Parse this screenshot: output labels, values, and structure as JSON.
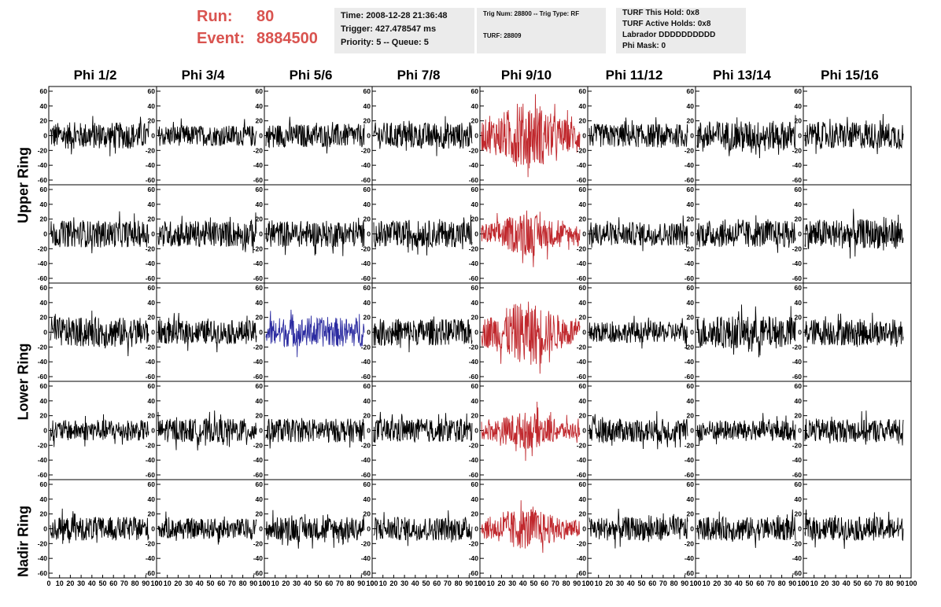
{
  "header": {
    "run_label": "Run:",
    "run_value": "80",
    "event_label": "Event:",
    "event_value": "8884500",
    "box1": {
      "time": "Time: 2008-12-28 21:36:48",
      "trigger": "Trigger: 427.478547 ms",
      "priority": "Priority: 5 -- Queue: 5"
    },
    "box2": {
      "trig": "Trig Num: 28800 -- Trig Type: RF",
      "turf": "TURF: 28809"
    },
    "box3": {
      "this_hold": "TURF This Hold: 0x8",
      "active_holds": "TURF Active Holds: 0x8",
      "labrador": "Labrador DDDDDDDDDD",
      "phi_mask": "Phi Mask: 0"
    }
  },
  "columns": [
    "Phi 1/2",
    "Phi 3/4",
    "Phi 5/6",
    "Phi 7/8",
    "Phi 9/10",
    "Phi 11/12",
    "Phi 13/14",
    "Phi 15/16"
  ],
  "rows": [
    "Upper Ring",
    "Lower Ring",
    "Nadir Ring"
  ],
  "colors": {
    "normal": "#000000",
    "highlight_red": "#c0282d",
    "highlight_blue": "#2a2aa0"
  },
  "chart_data": {
    "type": "line",
    "description_grid": "5 rows x 8 columns of waveform panels",
    "ylim": [
      -60,
      60
    ],
    "xlim": [
      0,
      100
    ],
    "yticks": [
      "60",
      "40",
      "20",
      "0",
      "-20",
      "-40",
      "-60"
    ],
    "xticks": [
      "0",
      "10",
      "20",
      "30",
      "40",
      "50",
      "60",
      "70",
      "80",
      "90",
      "100"
    ],
    "panels": [
      [
        {
          "amp": 18,
          "color": "normal"
        },
        {
          "amp": 14,
          "color": "normal"
        },
        {
          "amp": 16,
          "color": "normal"
        },
        {
          "amp": 18,
          "color": "normal"
        },
        {
          "amp": 32,
          "color": "highlight_red"
        },
        {
          "amp": 16,
          "color": "normal"
        },
        {
          "amp": 20,
          "color": "normal"
        },
        {
          "amp": 18,
          "color": "normal"
        }
      ],
      [
        {
          "amp": 18,
          "color": "normal"
        },
        {
          "amp": 18,
          "color": "normal"
        },
        {
          "amp": 18,
          "color": "normal"
        },
        {
          "amp": 18,
          "color": "normal"
        },
        {
          "amp": 20,
          "color": "highlight_red"
        },
        {
          "amp": 16,
          "color": "normal"
        },
        {
          "amp": 18,
          "color": "normal"
        },
        {
          "amp": 20,
          "color": "normal"
        }
      ],
      [
        {
          "amp": 20,
          "color": "normal"
        },
        {
          "amp": 16,
          "color": "normal"
        },
        {
          "amp": 20,
          "color": "highlight_blue"
        },
        {
          "amp": 18,
          "color": "normal"
        },
        {
          "amp": 30,
          "color": "highlight_red"
        },
        {
          "amp": 14,
          "color": "normal"
        },
        {
          "amp": 22,
          "color": "normal"
        },
        {
          "amp": 18,
          "color": "normal"
        }
      ],
      [
        {
          "amp": 14,
          "color": "normal"
        },
        {
          "amp": 16,
          "color": "normal"
        },
        {
          "amp": 16,
          "color": "normal"
        },
        {
          "amp": 16,
          "color": "normal"
        },
        {
          "amp": 18,
          "color": "highlight_red"
        },
        {
          "amp": 16,
          "color": "normal"
        },
        {
          "amp": 14,
          "color": "normal"
        },
        {
          "amp": 16,
          "color": "normal"
        }
      ],
      [
        {
          "amp": 16,
          "color": "normal"
        },
        {
          "amp": 14,
          "color": "normal"
        },
        {
          "amp": 16,
          "color": "normal"
        },
        {
          "amp": 16,
          "color": "normal"
        },
        {
          "amp": 20,
          "color": "highlight_red"
        },
        {
          "amp": 16,
          "color": "normal"
        },
        {
          "amp": 16,
          "color": "normal"
        },
        {
          "amp": 16,
          "color": "normal"
        }
      ]
    ]
  }
}
